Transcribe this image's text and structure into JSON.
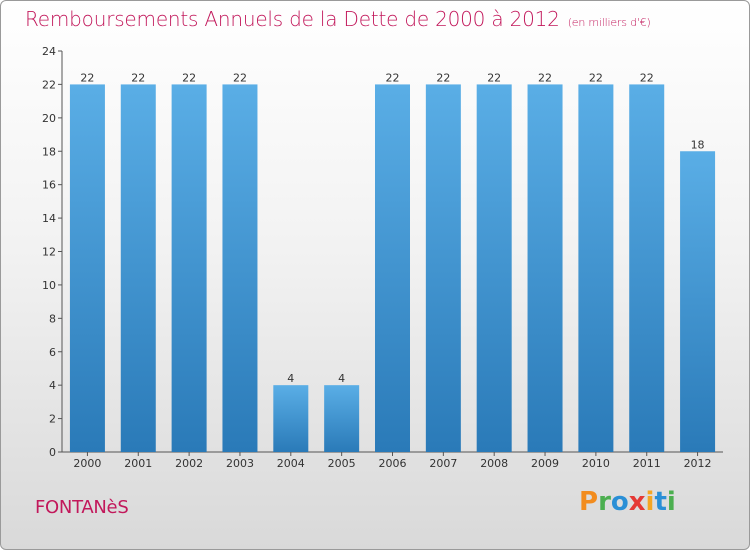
{
  "header": {
    "title": "Remboursements Annuels de la Dette de 2000 à 2012",
    "subtitle": "(en milliers d'€)"
  },
  "footer": {
    "commune": "FONTANèS",
    "brand": "Proxiti",
    "brand_letters": [
      {
        "ch": "P",
        "color": "#f28c1e"
      },
      {
        "ch": "r",
        "color": "#4caf50"
      },
      {
        "ch": "o",
        "color": "#2a8fd6"
      },
      {
        "ch": "x",
        "color": "#e53935"
      },
      {
        "ch": "i",
        "color": "#f5a623"
      },
      {
        "ch": "t",
        "color": "#2a8fd6"
      },
      {
        "ch": "i",
        "color": "#4caf50"
      }
    ]
  },
  "colors": {
    "bar_light": "#5aaee6",
    "bar_dark": "#2a7ab8",
    "accent": "#c2185b",
    "grid": "#cccccc"
  },
  "chart_data": {
    "type": "bar",
    "title": "Remboursements Annuels de la Dette de 2000 à 2012",
    "categories": [
      "2000",
      "2001",
      "2002",
      "2003",
      "2004",
      "2005",
      "2006",
      "2007",
      "2008",
      "2009",
      "2010",
      "2011",
      "2012"
    ],
    "values": [
      22,
      22,
      22,
      22,
      4,
      4,
      22,
      22,
      22,
      22,
      22,
      22,
      18
    ],
    "value_labels": [
      "22",
      "22",
      "22",
      "22",
      "4",
      "4",
      "22",
      "22",
      "22",
      "22",
      "22",
      "22",
      "18"
    ],
    "ylim": [
      0,
      24
    ],
    "yticks": [
      0,
      2,
      4,
      6,
      8,
      10,
      12,
      14,
      16,
      18,
      20,
      22,
      24
    ],
    "ytick_labels": [
      "0",
      "2",
      "4",
      "6",
      "8",
      "10",
      "12",
      "14",
      "16",
      "18",
      "20",
      "22",
      "24"
    ],
    "grid": false,
    "legend": "none"
  }
}
